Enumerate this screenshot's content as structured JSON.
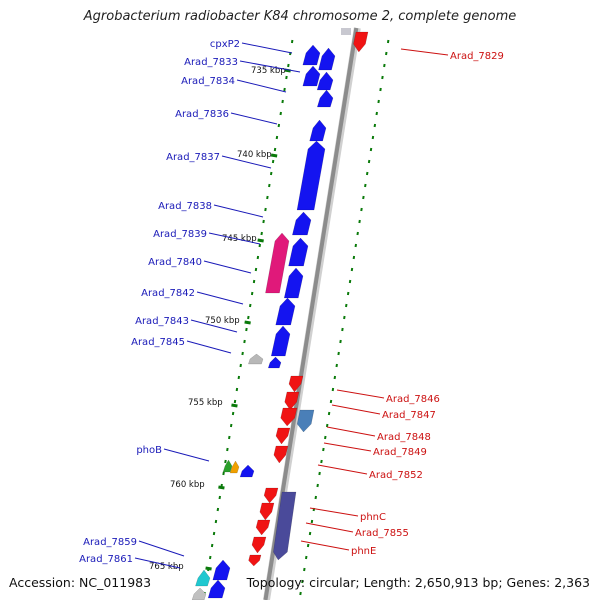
{
  "title": "Agrobacterium radiobacter K84 chromosome 2, complete genome",
  "accession": "Accession: NC_011983",
  "summary": "Topology: circular; Length: 2,650,913 bp; Genes: 2,363",
  "colors": {
    "forward_gene": "#1414f0",
    "reverse_gene": "#f01414",
    "tick": "#0a7a0a",
    "backbone": "#8c8c8c",
    "pseudo_gene": "#b8b8b8",
    "forward_label": "#1a1ab8",
    "reverse_label": "#cc1111"
  },
  "scale_ticks": [
    {
      "kbp": 735,
      "label": "735 kbp"
    },
    {
      "kbp": 740,
      "label": "740 kbp"
    },
    {
      "kbp": 745,
      "label": "745 kbp"
    },
    {
      "kbp": 750,
      "label": "750 kbp"
    },
    {
      "kbp": 755,
      "label": "755 kbp"
    },
    {
      "kbp": 760,
      "label": "760 kbp"
    },
    {
      "kbp": 765,
      "label": "765 kbp"
    }
  ],
  "forward_labels": [
    "cpxP2",
    "Arad_7833",
    "Arad_7834",
    "Arad_7836",
    "Arad_7837",
    "Arad_7838",
    "Arad_7839",
    "Arad_7840",
    "Arad_7842",
    "Arad_7843",
    "Arad_7845",
    "phoB",
    "Arad_7859",
    "Arad_7861"
  ],
  "reverse_labels": [
    "Arad_7829",
    "Arad_7846",
    "Arad_7847",
    "Arad_7848",
    "Arad_7849",
    "Arad_7852",
    "phnC",
    "Arad_7855",
    "phnE"
  ]
}
